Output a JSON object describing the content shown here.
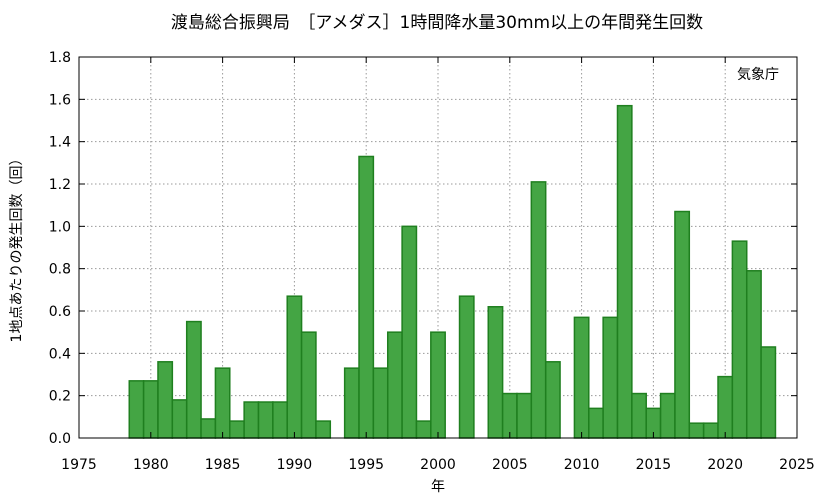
{
  "chart_data": {
    "type": "bar",
    "title": "渡島総合振興局　［アメダス］1時間降水量30mm以上の年間発生回数",
    "xlabel": "年",
    "ylabel": "1地点あたりの発生回数（回）",
    "source_note": "気象庁",
    "xlim": [
      1975,
      2025
    ],
    "ylim": [
      0,
      1.8
    ],
    "xticks": [
      1975,
      1980,
      1985,
      1990,
      1995,
      2000,
      2005,
      2010,
      2015,
      2020,
      2025
    ],
    "yticks": [
      0.0,
      0.2,
      0.4,
      0.6,
      0.8,
      1.0,
      1.2,
      1.4,
      1.6,
      1.8
    ],
    "ytick_labels": [
      "0.0",
      "0.2",
      "0.4",
      "0.6",
      "0.8",
      "1.0",
      "1.2",
      "1.4",
      "1.6",
      "1.8"
    ],
    "grid": true,
    "bar_color": "#44a544",
    "bar_edge_color": "#1f7f1f",
    "x": [
      1979,
      1980,
      1981,
      1982,
      1983,
      1984,
      1985,
      1986,
      1987,
      1988,
      1989,
      1990,
      1991,
      1992,
      1993,
      1994,
      1995,
      1996,
      1997,
      1998,
      1999,
      2000,
      2001,
      2002,
      2003,
      2004,
      2005,
      2006,
      2007,
      2008,
      2009,
      2010,
      2011,
      2012,
      2013,
      2014,
      2015,
      2016,
      2017,
      2018,
      2019,
      2020,
      2021,
      2022,
      2023
    ],
    "values": [
      0.27,
      0.27,
      0.36,
      0.18,
      0.55,
      0.09,
      0.33,
      0.08,
      0.17,
      0.17,
      0.17,
      0.67,
      0.5,
      0.08,
      0,
      0.33,
      1.33,
      0.33,
      0.5,
      1.0,
      0.08,
      0.5,
      0,
      0.67,
      0,
      0.62,
      0.21,
      0.21,
      1.21,
      0.36,
      0,
      0.57,
      0.14,
      0.57,
      1.57,
      0.21,
      0.14,
      0.21,
      1.07,
      0.07,
      0.07,
      0.29,
      0.93,
      0.79,
      0.43
    ]
  }
}
